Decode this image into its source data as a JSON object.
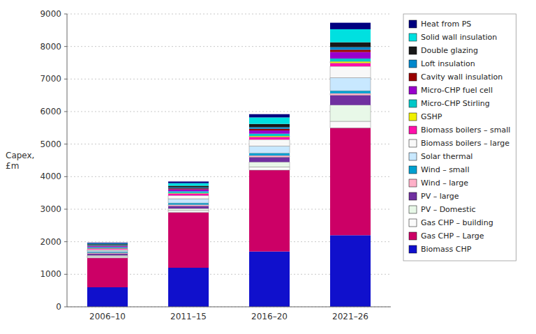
{
  "chart_data": {
    "type": "bar",
    "stacked": true,
    "categories": [
      "2006–10",
      "2011–15",
      "2016–20",
      "2021–26"
    ],
    "series": [
      {
        "name": "Biomass CHP",
        "color": "#1010CC",
        "values": [
          600,
          1200,
          1700,
          2200
        ]
      },
      {
        "name": "Gas CHP – Large",
        "color": "#CC0066",
        "values": [
          900,
          1700,
          2500,
          3300
        ]
      },
      {
        "name": "Gas CHP – building",
        "color": "#FAFAFA",
        "values": [
          40,
          60,
          100,
          200
        ]
      },
      {
        "name": "PV – Domestic",
        "color": "#E8F8E8",
        "values": [
          40,
          60,
          150,
          500
        ]
      },
      {
        "name": "PV – large",
        "color": "#7030A0",
        "values": [
          50,
          80,
          150,
          300
        ]
      },
      {
        "name": "Wind – large",
        "color": "#FFB0C8",
        "values": [
          30,
          40,
          50,
          60
        ]
      },
      {
        "name": "Wind – small",
        "color": "#00A0D0",
        "values": [
          30,
          50,
          70,
          80
        ]
      },
      {
        "name": "Solar thermal",
        "color": "#C8E8FF",
        "values": [
          40,
          130,
          220,
          400
        ]
      },
      {
        "name": "Biomass boilers – large",
        "color": "#F8F8F8",
        "values": [
          30,
          100,
          200,
          350
        ]
      },
      {
        "name": "Biomass boilers – small",
        "color": "#FF10AA",
        "values": [
          30,
          60,
          80,
          100
        ]
      },
      {
        "name": "GSHP",
        "color": "#F0F000",
        "values": [
          10,
          20,
          30,
          50
        ]
      },
      {
        "name": "Micro-CHP Stirling",
        "color": "#00C8C8",
        "values": [
          30,
          50,
          70,
          90
        ]
      },
      {
        "name": "Micro-CHP fuel cell",
        "color": "#9900CC",
        "values": [
          30,
          60,
          100,
          200
        ]
      },
      {
        "name": "Cavity wall insulation",
        "color": "#990000",
        "values": [
          15,
          30,
          50,
          70
        ]
      },
      {
        "name": "Loft insulation",
        "color": "#0088CC",
        "values": [
          20,
          30,
          50,
          80
        ]
      },
      {
        "name": "Double glazing",
        "color": "#181818",
        "values": [
          30,
          50,
          100,
          150
        ]
      },
      {
        "name": "Solid wall insulation",
        "color": "#00E0E0",
        "values": [
          20,
          80,
          200,
          400
        ]
      },
      {
        "name": "Heat from PS",
        "color": "#000080",
        "values": [
          25,
          50,
          100,
          200
        ]
      }
    ],
    "ylabel": "Capex,\n£m",
    "ylim": [
      0,
      9000
    ],
    "yticks": [
      0,
      1000,
      2000,
      3000,
      4000,
      5000,
      6000,
      7000,
      8000,
      9000
    ],
    "grid": true,
    "legend": "right"
  }
}
